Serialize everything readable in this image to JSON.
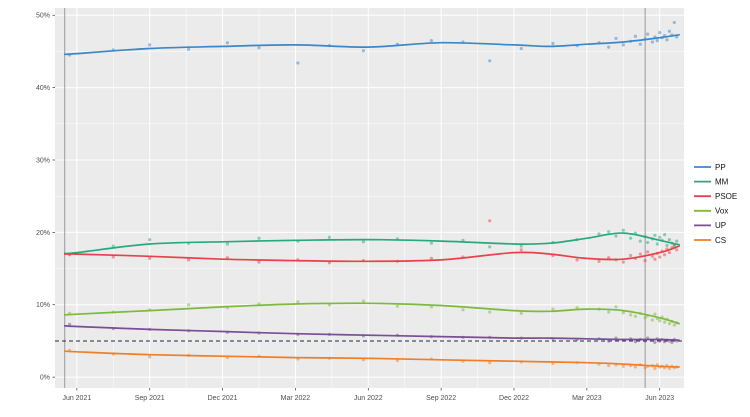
{
  "figure": {
    "background": "#ffffff",
    "panel_background": "#ebebeb",
    "grid_color": "#ffffff",
    "axis_text_color": "#4d4d4d",
    "tick_color": "#333333"
  },
  "chart_data": {
    "type": "line",
    "title": "",
    "xlabel": "",
    "ylabel": "",
    "x_tick_labels": [
      "Jun 2021",
      "Sep 2021",
      "Dec 2021",
      "Mar 2022",
      "Jun 2022",
      "Sep 2022",
      "Dec 2022",
      "Mar 2023",
      "Jun 2023"
    ],
    "x_tick_months": [
      0,
      3,
      6,
      9,
      12,
      15,
      18,
      21,
      24
    ],
    "y_ticks": [
      0,
      10,
      20,
      30,
      40,
      50
    ],
    "y_tick_labels": [
      "0%",
      "10%",
      "20%",
      "30%",
      "40%",
      "50%"
    ],
    "ylim": [
      0,
      50
    ],
    "grid": true,
    "legend_position": "right",
    "threshold": {
      "value": 5,
      "style": "dashed",
      "color": "#1f2a44"
    },
    "event_lines": [
      {
        "x": -0.5
      },
      {
        "x": 23.4
      }
    ],
    "trend_x": [
      -0.5,
      0,
      3,
      6,
      9,
      12,
      15,
      18,
      19.5,
      21,
      22.5,
      24,
      24.8
    ],
    "series": [
      {
        "name": "PP",
        "color": "#3d87c8",
        "trend": [
          44.6,
          44.7,
          45.4,
          45.7,
          45.9,
          45.6,
          46.2,
          45.9,
          45.7,
          46.0,
          46.3,
          46.9,
          47.3
        ]
      },
      {
        "name": "MM",
        "color": "#26a97c",
        "trend": [
          17.1,
          17.2,
          18.4,
          18.7,
          18.9,
          19.0,
          18.8,
          18.4,
          18.5,
          19.2,
          19.9,
          18.9,
          18.3
        ]
      },
      {
        "name": "PSOE",
        "color": "#e8414b",
        "trend": [
          17.0,
          17.0,
          16.7,
          16.3,
          16.1,
          16.0,
          16.2,
          17.2,
          17.0,
          16.4,
          16.3,
          17.2,
          18.1
        ]
      },
      {
        "name": "Vox",
        "color": "#7cb93e",
        "trend": [
          8.6,
          8.7,
          9.2,
          9.7,
          10.1,
          10.2,
          9.9,
          9.2,
          9.1,
          9.4,
          9.2,
          8.2,
          7.4
        ]
      },
      {
        "name": "UP",
        "color": "#7a4e93",
        "trend": [
          7.1,
          7.0,
          6.6,
          6.3,
          6.0,
          5.8,
          5.6,
          5.4,
          5.4,
          5.3,
          5.2,
          5.2,
          5.1
        ]
      },
      {
        "name": "CS",
        "color": "#f07e26",
        "trend": [
          3.6,
          3.5,
          3.1,
          2.9,
          2.7,
          2.6,
          2.4,
          2.2,
          2.1,
          2.0,
          1.8,
          1.5,
          1.4
        ]
      }
    ],
    "polls": {
      "x": [
        -0.3,
        1.5,
        3.0,
        4.6,
        6.2,
        7.5,
        9.1,
        10.4,
        11.8,
        13.2,
        14.6,
        15.9,
        17.0,
        18.3,
        19.6,
        20.6,
        21.5,
        21.9,
        22.2,
        22.5,
        22.8,
        23.0,
        23.2,
        23.4,
        23.5,
        23.7,
        23.8,
        23.9,
        24.0,
        24.1,
        24.2,
        24.3,
        24.4,
        24.5,
        24.6,
        24.7
      ],
      "PP": [
        44.5,
        45.2,
        45.9,
        45.3,
        46.2,
        45.5,
        43.4,
        45.8,
        45.1,
        46.0,
        46.5,
        46.3,
        43.7,
        45.4,
        46.1,
        45.8,
        46.2,
        45.6,
        46.8,
        45.9,
        46.4,
        47.1,
        46.0,
        46.7,
        47.4,
        46.3,
        47.0,
        46.5,
        47.6,
        46.9,
        47.2,
        46.6,
        47.8,
        47.3,
        49.0,
        47.0
      ],
      "MM": [
        17.0,
        18.1,
        19.0,
        18.5,
        18.4,
        19.2,
        18.8,
        19.3,
        18.7,
        19.1,
        18.5,
        18.9,
        18.0,
        18.1,
        18.6,
        19.0,
        19.8,
        20.1,
        19.5,
        20.3,
        19.2,
        19.9,
        18.8,
        19.4,
        18.6,
        19.1,
        19.6,
        18.4,
        19.3,
        18.9,
        19.7,
        18.2,
        19.0,
        18.5,
        18.1,
        18.8
      ],
      "PSOE": [
        16.9,
        16.6,
        16.4,
        16.2,
        16.5,
        15.9,
        16.2,
        15.8,
        16.1,
        16.0,
        16.4,
        16.6,
        21.6,
        17.6,
        16.8,
        16.2,
        16.0,
        16.5,
        16.2,
        15.9,
        16.8,
        16.4,
        17.0,
        16.1,
        17.3,
        16.7,
        16.3,
        17.1,
        16.6,
        17.4,
        16.9,
        17.7,
        17.2,
        17.9,
        18.3,
        17.6
      ],
      "Vox": [
        8.8,
        9.0,
        9.3,
        10.0,
        9.6,
        10.1,
        10.4,
        10.0,
        10.5,
        9.8,
        9.7,
        9.3,
        9.0,
        8.8,
        9.4,
        9.6,
        9.4,
        9.0,
        9.7,
        8.9,
        8.6,
        8.4,
        8.8,
        8.2,
        8.5,
        7.9,
        8.7,
        8.1,
        7.8,
        8.3,
        7.6,
        8.0,
        7.4,
        7.7,
        7.2,
        7.5
      ],
      "UP": [
        7.3,
        6.7,
        6.6,
        6.4,
        6.2,
        6.1,
        5.9,
        5.9,
        5.7,
        5.8,
        5.6,
        5.5,
        5.5,
        5.4,
        5.3,
        5.2,
        5.3,
        5.0,
        5.4,
        5.1,
        5.3,
        4.9,
        5.2,
        5.0,
        5.4,
        5.1,
        4.8,
        5.3,
        5.0,
        5.2,
        4.9,
        5.1,
        5.0,
        4.8,
        5.2,
        5.0
      ],
      "CS": [
        3.7,
        3.2,
        2.8,
        3.0,
        2.7,
        2.9,
        2.5,
        2.6,
        2.4,
        2.3,
        2.5,
        2.2,
        2.0,
        2.1,
        1.9,
        2.0,
        1.8,
        1.6,
        1.7,
        1.5,
        1.6,
        1.4,
        1.7,
        1.3,
        1.5,
        1.6,
        1.2,
        1.7,
        1.4,
        1.5,
        1.3,
        1.6,
        1.2,
        1.5,
        1.3,
        1.4
      ]
    }
  }
}
